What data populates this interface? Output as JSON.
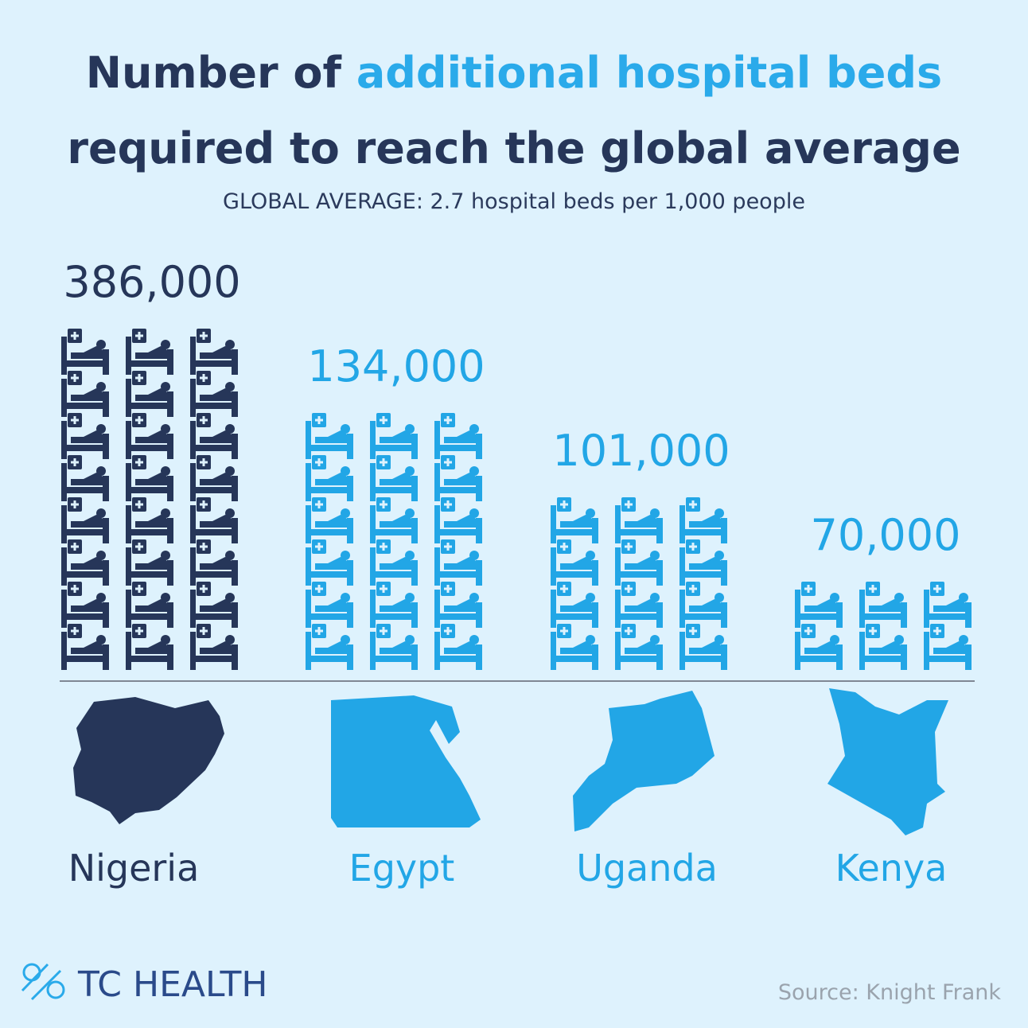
{
  "chart_data": {
    "type": "pictogram",
    "title_parts": [
      "Number of",
      "additional hospital beds",
      "required to reach the global average"
    ],
    "subtitle": "GLOBAL AVERAGE: 2.7 hospital beds per 1,000 people",
    "categories": [
      "Nigeria",
      "Egypt",
      "Uganda",
      "Kenya"
    ],
    "values": [
      386000,
      134000,
      101000,
      70000
    ],
    "value_labels": [
      "386,000",
      "134,000",
      "101,000",
      "70,000"
    ],
    "colors": [
      "#263659",
      "#22a6e6",
      "#22a6e6",
      "#22a6e6"
    ],
    "title_colors": [
      "#263659",
      "#2aaaea",
      "#263659"
    ],
    "brand": "TC HEALTH",
    "source": "Source: Knight Frank"
  }
}
